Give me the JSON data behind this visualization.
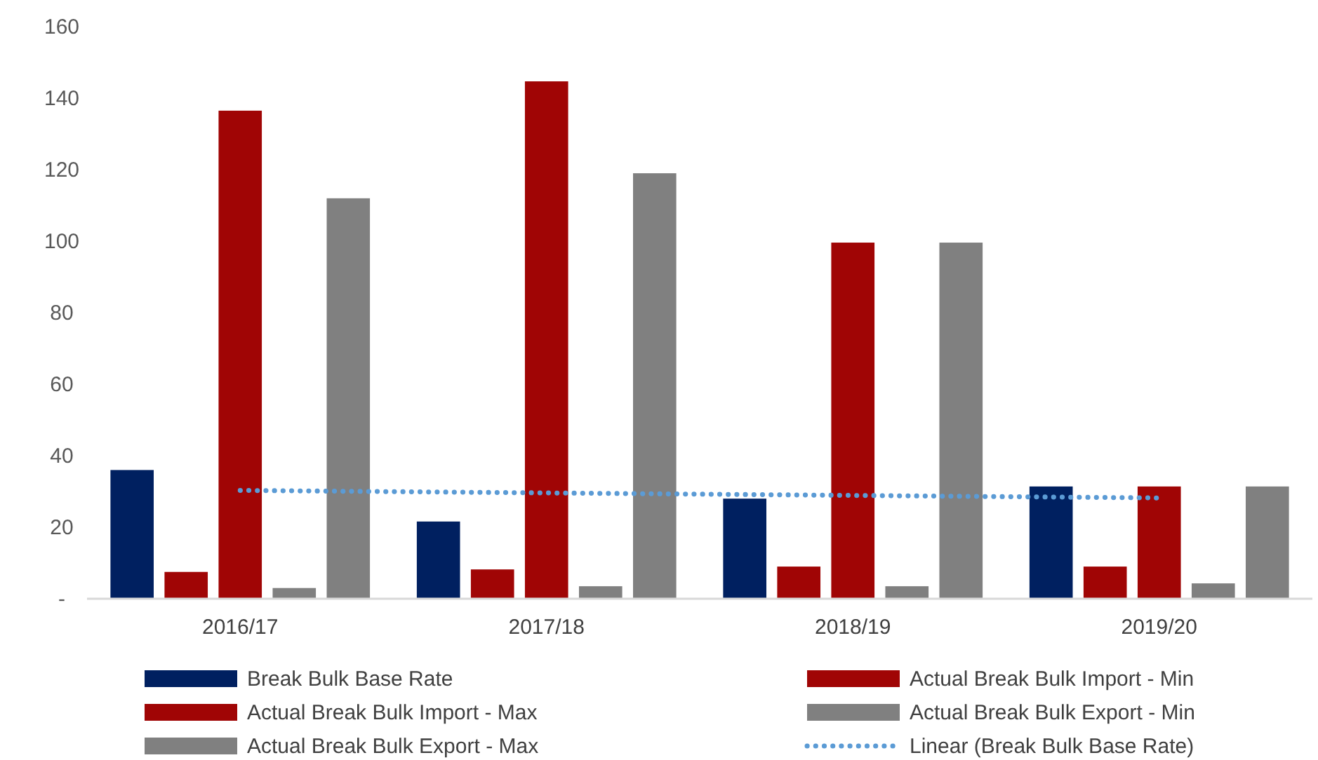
{
  "chart_data": {
    "type": "bar",
    "categories": [
      "2016/17",
      "2017/18",
      "2018/19",
      "2019/20"
    ],
    "series": [
      {
        "name": "Break Bulk Base Rate",
        "color": "#002060",
        "values": [
          36,
          21.6,
          28,
          31.4
        ]
      },
      {
        "name": "Actual Break Bulk Import - Min",
        "color": "#a00505",
        "values": [
          7.5,
          8.2,
          9,
          9
        ]
      },
      {
        "name": "Actual Break Bulk Import - Max",
        "color": "#a00505",
        "values": [
          136.5,
          144.7,
          99.6,
          31.4
        ]
      },
      {
        "name": "Actual Break Bulk Export - Min",
        "color": "#808080",
        "values": [
          3,
          3.5,
          3.5,
          4.3
        ]
      },
      {
        "name": "Actual Break Bulk Export - Max",
        "color": "#808080",
        "values": [
          112,
          119,
          99.6,
          31.4
        ]
      },
      {
        "name": "Linear (Break Bulk Base Rate)",
        "color": "#5b9bd5",
        "type": "line",
        "line_style": "dotted",
        "marker": "none",
        "values": [
          30.3,
          29.6,
          28.9,
          28.2
        ]
      }
    ],
    "ylim": [
      0,
      160
    ],
    "yticks": [
      {
        "value": 0,
        "label": "-"
      },
      20,
      40,
      60,
      80,
      100,
      120,
      140,
      160
    ],
    "grid": false,
    "legend": "bottom"
  }
}
